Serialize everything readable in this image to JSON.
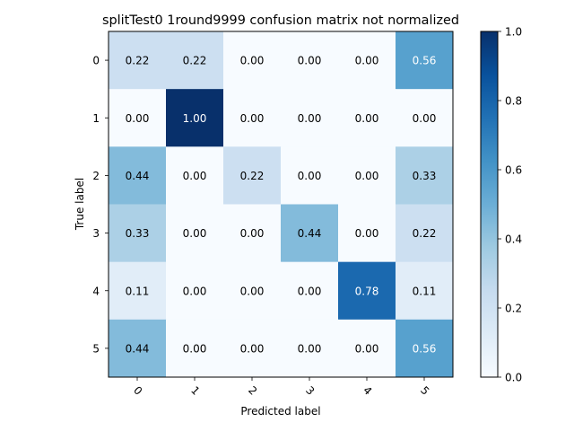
{
  "chart_data": {
    "type": "heatmap",
    "title": "splitTest0 1round9999 confusion matrix not normalized",
    "xlabel": "Predicted label",
    "ylabel": "True label",
    "x_categories": [
      "0",
      "1",
      "2",
      "3",
      "4",
      "5"
    ],
    "y_categories": [
      "0",
      "1",
      "2",
      "3",
      "4",
      "5"
    ],
    "values": [
      [
        0.22,
        0.22,
        0.0,
        0.0,
        0.0,
        0.56
      ],
      [
        0.0,
        1.0,
        0.0,
        0.0,
        0.0,
        0.0
      ],
      [
        0.44,
        0.0,
        0.22,
        0.0,
        0.0,
        0.33
      ],
      [
        0.33,
        0.0,
        0.0,
        0.44,
        0.0,
        0.22
      ],
      [
        0.11,
        0.0,
        0.0,
        0.0,
        0.78,
        0.11
      ],
      [
        0.44,
        0.0,
        0.0,
        0.0,
        0.0,
        0.56
      ]
    ],
    "value_format": "2 decimals",
    "colormap": "Blues",
    "colorbar": {
      "range": [
        0.0,
        1.0
      ],
      "ticks": [
        "0.0",
        "0.2",
        "0.4",
        "0.6",
        "0.8",
        "1.0"
      ]
    },
    "x_tick_rotation": "45 degrees",
    "grid": false
  }
}
